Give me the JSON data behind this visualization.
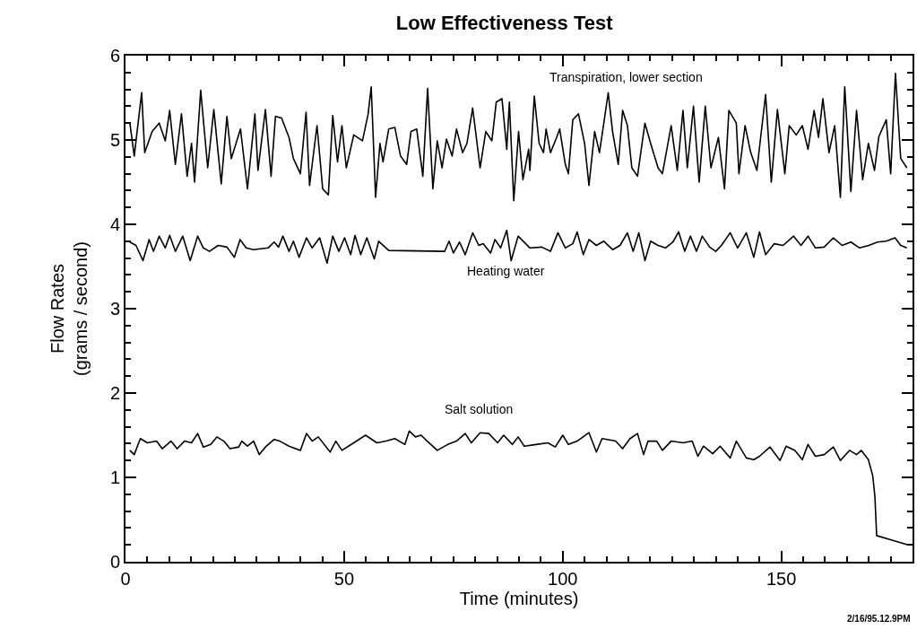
{
  "chart_data": {
    "type": "line",
    "title": "Low Effectiveness Test",
    "xlabel": "Time (minutes)",
    "ylabel": "Flow Rates\n(grams / second)",
    "xlim": [
      0,
      180
    ],
    "ylim": [
      0,
      6
    ],
    "xticks": [
      0,
      {
        "value": 5,
        "label": null
      },
      {
        "value": 10,
        "label": null
      },
      {
        "value": 15,
        "label": null
      },
      {
        "value": 20,
        "label": null
      },
      {
        "value": 25,
        "label": null
      },
      {
        "value": 30,
        "label": null
      },
      {
        "value": 35,
        "label": null
      },
      {
        "value": 40,
        "label": null
      },
      {
        "value": 45,
        "label": null
      },
      50,
      {
        "value": 55,
        "label": null
      },
      {
        "value": 60,
        "label": null
      },
      {
        "value": 65,
        "label": null
      },
      {
        "value": 70,
        "label": null
      },
      {
        "value": 75,
        "label": null
      },
      {
        "value": 80,
        "label": null
      },
      {
        "value": 85,
        "label": null
      },
      {
        "value": 90,
        "label": null
      },
      {
        "value": 95,
        "label": null
      },
      100,
      {
        "value": 105,
        "label": null
      },
      {
        "value": 110,
        "label": null
      },
      {
        "value": 115,
        "label": null
      },
      {
        "value": 120,
        "label": null
      },
      {
        "value": 125,
        "label": null
      },
      {
        "value": 130,
        "label": null
      },
      {
        "value": 135,
        "label": null
      },
      {
        "value": 140,
        "label": null
      },
      {
        "value": 145,
        "label": null
      },
      150,
      {
        "value": 155,
        "label": null
      },
      {
        "value": 160,
        "label": null
      },
      {
        "value": 165,
        "label": null
      },
      {
        "value": 170,
        "label": null
      },
      {
        "value": 175,
        "label": null
      },
      {
        "value": 180,
        "label": null
      }
    ],
    "yticks": [
      0,
      {
        "value": 0.2,
        "label": null
      },
      {
        "value": 0.4,
        "label": null
      },
      {
        "value": 0.6,
        "label": null
      },
      {
        "value": 0.8,
        "label": null
      },
      1,
      {
        "value": 1.2,
        "label": null
      },
      {
        "value": 1.4,
        "label": null
      },
      {
        "value": 1.6,
        "label": null
      },
      {
        "value": 1.8,
        "label": null
      },
      2,
      {
        "value": 2.2,
        "label": null
      },
      {
        "value": 2.4,
        "label": null
      },
      {
        "value": 2.6,
        "label": null
      },
      {
        "value": 2.8,
        "label": null
      },
      3,
      {
        "value": 3.2,
        "label": null
      },
      {
        "value": 3.4,
        "label": null
      },
      {
        "value": 3.6,
        "label": null
      },
      {
        "value": 3.8,
        "label": null
      },
      4,
      {
        "value": 4.2,
        "label": null
      },
      {
        "value": 4.4,
        "label": null
      },
      {
        "value": 4.6,
        "label": null
      },
      {
        "value": 4.8,
        "label": null
      },
      5,
      {
        "value": 5.2,
        "label": null
      },
      {
        "value": 5.4,
        "label": null
      },
      {
        "value": 5.6,
        "label": null
      },
      {
        "value": 5.8,
        "label": null
      },
      6
    ],
    "grid": false,
    "marker": "none",
    "line_style": "solid",
    "annotations": [
      "2/16/95.12.9PM"
    ],
    "series": [
      {
        "name": "Transpiration, lower section",
        "color": "#000000",
        "x": [
          1.0,
          2.0,
          3.7,
          4.4,
          6.1,
          7.7,
          9.1,
          10.1,
          11.4,
          12.8,
          14.1,
          15.1,
          15.8,
          17.2,
          18.8,
          20.2,
          21.9,
          23.2,
          24.2,
          26.3,
          27.9,
          29.6,
          30.3,
          32.0,
          33.3,
          34.3,
          35.7,
          37.4,
          38.4,
          40.0,
          41.3,
          42.1,
          43.8,
          45.1,
          46.4,
          47.4,
          48.5,
          49.5,
          50.5,
          52.2,
          54.2,
          55.5,
          56.2,
          57.2,
          58.2,
          58.9,
          60.2,
          61.6,
          62.9,
          64.3,
          65.3,
          66.6,
          68.0,
          69.1,
          70.3,
          71.3,
          72.4,
          73.4,
          74.7,
          75.7,
          77.1,
          78.1,
          79.4,
          81.1,
          82.4,
          83.8,
          84.8,
          86.1,
          87.2,
          87.8,
          88.8,
          89.9,
          90.9,
          92.2,
          92.5,
          93.5,
          94.6,
          95.6,
          96.2,
          97.2,
          98.6,
          99.3,
          100.6,
          101.3,
          102.3,
          103.6,
          105.0,
          106.0,
          107.3,
          108.4,
          109.4,
          110.4,
          111.4,
          112.7,
          113.7,
          114.8,
          115.8,
          117.1,
          118.8,
          120.1,
          121.8,
          122.8,
          124.8,
          126.2,
          127.5,
          128.5,
          129.9,
          131.2,
          132.6,
          133.9,
          135.6,
          137.0,
          138.0,
          139.7,
          140.3,
          141.7,
          143.0,
          144.4,
          146.4,
          147.7,
          149.1,
          150.8,
          151.8,
          153.4,
          154.8,
          156.1,
          157.5,
          158.5,
          159.5,
          160.9,
          162.2,
          163.5,
          164.5,
          165.9,
          167.2,
          168.6,
          169.9,
          171.3,
          172.3,
          174.0,
          175.0,
          176.1,
          177.3,
          178.7
        ],
        "values": [
          5.2,
          4.81,
          5.56,
          4.85,
          5.1,
          5.2,
          4.99,
          5.35,
          4.71,
          5.31,
          4.57,
          4.96,
          4.5,
          5.59,
          4.67,
          5.36,
          4.48,
          5.28,
          4.78,
          5.13,
          4.42,
          5.31,
          4.64,
          5.36,
          4.57,
          5.28,
          5.26,
          5.03,
          4.78,
          4.6,
          5.33,
          4.46,
          5.17,
          4.42,
          4.35,
          5.29,
          4.74,
          5.17,
          4.67,
          5.06,
          4.99,
          5.31,
          5.63,
          4.32,
          4.96,
          4.74,
          5.13,
          5.15,
          4.81,
          4.71,
          5.1,
          5.13,
          4.57,
          5.61,
          4.42,
          4.99,
          4.67,
          5.01,
          4.81,
          5.13,
          4.85,
          4.96,
          5.38,
          4.67,
          5.1,
          4.99,
          5.45,
          5.49,
          4.89,
          5.45,
          4.28,
          5.1,
          4.53,
          4.89,
          4.64,
          5.52,
          4.96,
          4.85,
          5.13,
          4.85,
          5.03,
          5.13,
          4.71,
          4.6,
          5.24,
          5.31,
          4.96,
          4.46,
          5.1,
          4.85,
          5.2,
          5.56,
          5.1,
          4.71,
          5.35,
          5.17,
          4.67,
          4.57,
          5.2,
          4.96,
          4.67,
          4.6,
          5.17,
          4.64,
          5.35,
          4.67,
          5.4,
          4.5,
          5.4,
          4.67,
          5.03,
          4.42,
          5.35,
          5.2,
          4.6,
          5.17,
          4.85,
          4.64,
          5.54,
          4.5,
          5.36,
          4.6,
          5.17,
          5.06,
          5.17,
          4.89,
          5.35,
          5.03,
          5.49,
          4.85,
          5.17,
          4.32,
          5.63,
          4.39,
          5.35,
          4.53,
          4.96,
          4.64,
          5.04,
          5.24,
          4.6,
          5.79,
          4.78,
          4.67
        ]
      },
      {
        "name": "Heating water",
        "color": "#000000",
        "x": [
          1.0,
          2.4,
          4.0,
          5.4,
          6.4,
          7.7,
          9.1,
          10.1,
          11.4,
          13.1,
          14.8,
          16.5,
          17.8,
          19.2,
          21.2,
          23.2,
          24.9,
          26.2,
          27.6,
          29.3,
          32.6,
          34.0,
          35.0,
          36.0,
          37.4,
          38.4,
          39.7,
          41.4,
          42.7,
          44.4,
          46.1,
          47.4,
          48.8,
          50.1,
          51.5,
          52.5,
          53.8,
          55.2,
          56.9,
          57.9,
          60.2,
          73.0,
          74.0,
          75.0,
          76.4,
          77.7,
          79.4,
          80.8,
          81.8,
          83.5,
          84.5,
          85.8,
          87.2,
          88.2,
          89.8,
          92.5,
          95.2,
          97.2,
          98.9,
          100.6,
          102.3,
          103.3,
          104.7,
          106.0,
          107.7,
          109.4,
          111.4,
          113.1,
          114.8,
          116.1,
          117.4,
          118.8,
          120.1,
          121.8,
          123.5,
          125.2,
          126.5,
          127.9,
          129.2,
          130.6,
          131.9,
          133.6,
          135.0,
          136.3,
          138.3,
          140.0,
          142.0,
          143.7,
          145.0,
          146.4,
          148.4,
          150.4,
          152.8,
          154.5,
          156.1,
          157.8,
          159.8,
          161.9,
          163.9,
          165.9,
          167.9,
          170.0,
          172.0,
          174.0,
          176.0,
          177.3,
          178.7
        ],
        "values": [
          3.79,
          3.75,
          3.57,
          3.82,
          3.68,
          3.86,
          3.72,
          3.87,
          3.68,
          3.86,
          3.57,
          3.86,
          3.72,
          3.68,
          3.75,
          3.73,
          3.61,
          3.82,
          3.72,
          3.7,
          3.72,
          3.79,
          3.73,
          3.86,
          3.68,
          3.8,
          3.61,
          3.84,
          3.72,
          3.84,
          3.54,
          3.86,
          3.68,
          3.84,
          3.64,
          3.87,
          3.64,
          3.84,
          3.59,
          3.8,
          3.69,
          3.68,
          3.8,
          3.66,
          3.79,
          3.64,
          3.9,
          3.75,
          3.77,
          3.66,
          3.82,
          3.72,
          3.93,
          3.57,
          3.86,
          3.72,
          3.73,
          3.68,
          3.9,
          3.72,
          3.77,
          3.91,
          3.64,
          3.82,
          3.75,
          3.8,
          3.7,
          3.75,
          3.9,
          3.68,
          3.9,
          3.57,
          3.8,
          3.75,
          3.72,
          3.79,
          3.91,
          3.68,
          3.86,
          3.68,
          3.86,
          3.73,
          3.68,
          3.75,
          3.9,
          3.72,
          3.9,
          3.61,
          3.91,
          3.64,
          3.77,
          3.75,
          3.86,
          3.75,
          3.86,
          3.72,
          3.73,
          3.84,
          3.75,
          3.79,
          3.72,
          3.75,
          3.79,
          3.8,
          3.84,
          3.75,
          3.72
        ]
      },
      {
        "name": "Salt solution",
        "color": "#000000",
        "x": [
          1.0,
          2.0,
          3.4,
          5.0,
          7.1,
          8.4,
          10.4,
          11.8,
          13.5,
          15.1,
          16.5,
          17.8,
          19.5,
          20.9,
          22.5,
          23.9,
          25.9,
          26.6,
          27.9,
          29.3,
          30.6,
          32.0,
          34.0,
          35.3,
          37.4,
          40.0,
          41.4,
          42.7,
          44.1,
          46.8,
          48.1,
          49.5,
          52.2,
          54.9,
          57.5,
          59.6,
          61.6,
          63.9,
          64.9,
          66.3,
          67.6,
          69.0,
          71.3,
          73.7,
          75.7,
          77.7,
          79.1,
          81.1,
          83.1,
          85.1,
          86.5,
          88.5,
          89.8,
          91.2,
          93.9,
          96.6,
          98.3,
          100.0,
          101.3,
          103.3,
          106.0,
          107.7,
          109.0,
          112.1,
          113.7,
          115.4,
          117.1,
          118.5,
          119.5,
          121.5,
          122.8,
          124.8,
          127.5,
          129.6,
          130.9,
          132.2,
          134.3,
          136.0,
          138.3,
          139.7,
          142.0,
          143.7,
          145.0,
          147.4,
          149.7,
          151.1,
          153.1,
          154.8,
          156.1,
          157.8,
          159.8,
          161.9,
          163.5,
          165.6,
          167.2,
          168.3,
          169.9,
          170.9,
          171.4,
          171.8,
          175.0,
          179.0
        ],
        "values": [
          1.32,
          1.27,
          1.46,
          1.41,
          1.43,
          1.34,
          1.43,
          1.34,
          1.43,
          1.41,
          1.52,
          1.36,
          1.39,
          1.48,
          1.43,
          1.34,
          1.36,
          1.43,
          1.37,
          1.43,
          1.27,
          1.36,
          1.45,
          1.43,
          1.37,
          1.32,
          1.52,
          1.43,
          1.48,
          1.3,
          1.43,
          1.32,
          1.41,
          1.5,
          1.41,
          1.43,
          1.46,
          1.39,
          1.55,
          1.48,
          1.5,
          1.43,
          1.32,
          1.39,
          1.43,
          1.52,
          1.41,
          1.53,
          1.52,
          1.41,
          1.5,
          1.39,
          1.48,
          1.37,
          1.39,
          1.41,
          1.36,
          1.5,
          1.39,
          1.43,
          1.53,
          1.3,
          1.46,
          1.43,
          1.34,
          1.46,
          1.52,
          1.27,
          1.43,
          1.43,
          1.32,
          1.43,
          1.41,
          1.43,
          1.25,
          1.37,
          1.28,
          1.37,
          1.23,
          1.43,
          1.23,
          1.21,
          1.25,
          1.36,
          1.2,
          1.37,
          1.32,
          1.21,
          1.39,
          1.25,
          1.27,
          1.36,
          1.2,
          1.32,
          1.27,
          1.32,
          1.21,
          1.02,
          0.77,
          0.31,
          0.26,
          0.2
        ]
      }
    ]
  }
}
